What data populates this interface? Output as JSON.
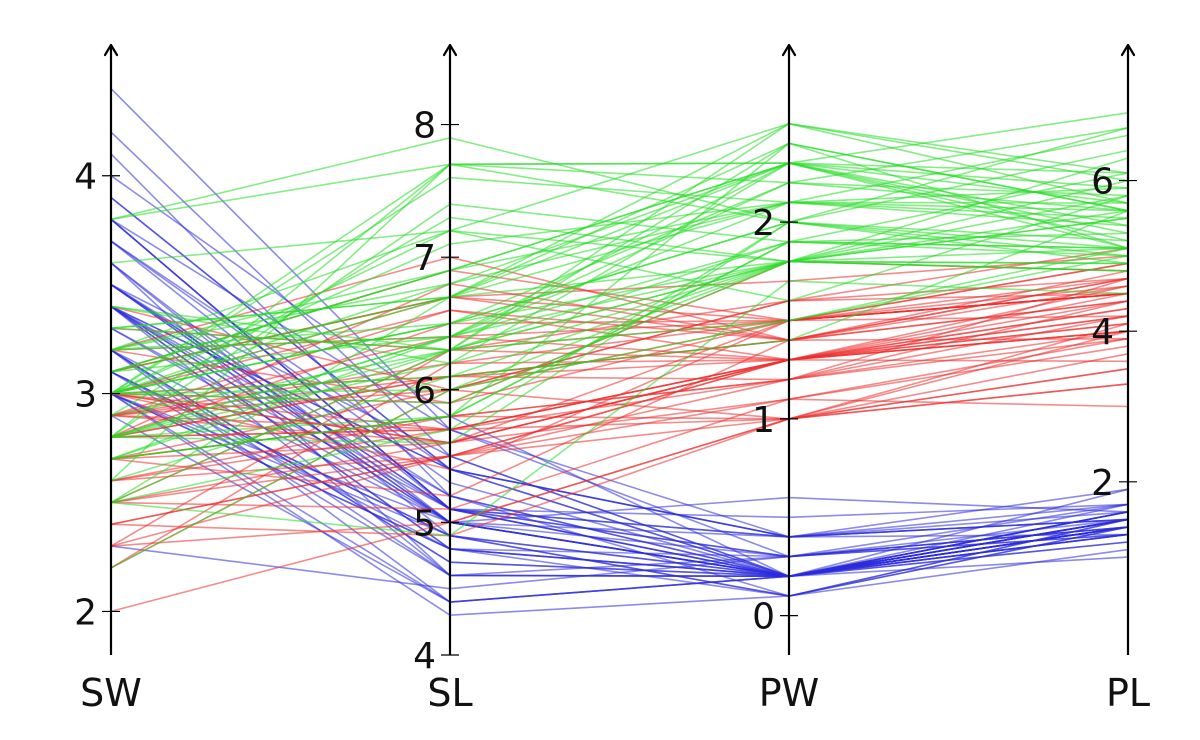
{
  "chart_data": {
    "type": "parallel-coordinates",
    "dimensions": [
      {
        "key": "SW",
        "label": "SW",
        "range": [
          1.8,
          4.6
        ],
        "ticks": [
          2,
          3,
          4
        ],
        "tick_labels": [
          "2",
          "3",
          "4"
        ]
      },
      {
        "key": "SL",
        "label": "SL",
        "range": [
          4.0,
          8.6
        ],
        "ticks": [
          4,
          5,
          6,
          7,
          8
        ],
        "tick_labels": [
          "4",
          "5",
          "6",
          "7",
          "8"
        ]
      },
      {
        "key": "PW",
        "label": "PW",
        "range": [
          -0.2,
          2.9
        ],
        "ticks": [
          0,
          1,
          2
        ],
        "tick_labels": [
          "0",
          "1",
          "2"
        ]
      },
      {
        "key": "PL",
        "label": "PL",
        "range": [
          -0.3,
          7.8
        ],
        "ticks": [
          2,
          4,
          6
        ],
        "tick_labels": [
          "2",
          "4",
          "6"
        ]
      }
    ],
    "colors": {
      "setosa": "#2b2bdd",
      "versicolor": "#ee2b2b",
      "virginica": "#22dd22"
    },
    "series": [
      {
        "color": "#2b2bdd",
        "records": [
          [
            3.5,
            5.1,
            0.2,
            1.4
          ],
          [
            3.0,
            4.9,
            0.2,
            1.4
          ],
          [
            3.2,
            4.7,
            0.2,
            1.3
          ],
          [
            3.1,
            4.6,
            0.2,
            1.5
          ],
          [
            3.6,
            5.0,
            0.2,
            1.4
          ],
          [
            3.9,
            5.4,
            0.4,
            1.7
          ],
          [
            3.4,
            4.6,
            0.3,
            1.4
          ],
          [
            3.4,
            5.0,
            0.2,
            1.5
          ],
          [
            2.9,
            4.4,
            0.2,
            1.4
          ],
          [
            3.1,
            4.9,
            0.1,
            1.5
          ],
          [
            3.7,
            5.4,
            0.2,
            1.5
          ],
          [
            3.4,
            4.8,
            0.2,
            1.6
          ],
          [
            3.0,
            4.8,
            0.1,
            1.4
          ],
          [
            3.0,
            4.3,
            0.1,
            1.1
          ],
          [
            4.0,
            5.8,
            0.2,
            1.2
          ],
          [
            4.4,
            5.7,
            0.4,
            1.5
          ],
          [
            3.9,
            5.4,
            0.4,
            1.3
          ],
          [
            3.5,
            5.1,
            0.3,
            1.4
          ],
          [
            3.8,
            5.7,
            0.3,
            1.7
          ],
          [
            3.8,
            5.1,
            0.3,
            1.5
          ],
          [
            3.4,
            5.4,
            0.2,
            1.7
          ],
          [
            3.7,
            5.1,
            0.4,
            1.5
          ],
          [
            3.6,
            4.6,
            0.2,
            1.0
          ],
          [
            3.3,
            5.1,
            0.5,
            1.7
          ],
          [
            3.4,
            4.8,
            0.2,
            1.9
          ],
          [
            3.0,
            5.0,
            0.2,
            1.6
          ],
          [
            3.4,
            5.0,
            0.4,
            1.6
          ],
          [
            3.5,
            5.2,
            0.2,
            1.5
          ],
          [
            3.4,
            5.2,
            0.2,
            1.4
          ],
          [
            3.2,
            4.7,
            0.2,
            1.6
          ],
          [
            3.1,
            4.8,
            0.2,
            1.6
          ],
          [
            3.4,
            5.4,
            0.4,
            1.5
          ],
          [
            4.1,
            5.2,
            0.1,
            1.5
          ],
          [
            4.2,
            5.5,
            0.2,
            1.4
          ],
          [
            3.1,
            4.9,
            0.2,
            1.5
          ],
          [
            3.2,
            5.0,
            0.2,
            1.2
          ],
          [
            3.5,
            5.5,
            0.2,
            1.3
          ],
          [
            3.6,
            4.9,
            0.1,
            1.4
          ],
          [
            3.0,
            4.4,
            0.2,
            1.3
          ],
          [
            3.4,
            5.1,
            0.2,
            1.5
          ],
          [
            3.5,
            5.0,
            0.3,
            1.3
          ],
          [
            2.3,
            4.5,
            0.3,
            1.3
          ],
          [
            3.2,
            4.4,
            0.2,
            1.3
          ],
          [
            3.5,
            5.0,
            0.6,
            1.6
          ],
          [
            3.8,
            5.1,
            0.4,
            1.9
          ],
          [
            3.0,
            4.8,
            0.3,
            1.4
          ],
          [
            3.8,
            5.1,
            0.2,
            1.6
          ],
          [
            3.2,
            4.6,
            0.2,
            1.4
          ],
          [
            3.7,
            5.3,
            0.2,
            1.5
          ],
          [
            3.3,
            5.0,
            0.2,
            1.4
          ]
        ]
      },
      {
        "color": "#ee2b2b",
        "records": [
          [
            3.2,
            7.0,
            1.4,
            4.7
          ],
          [
            3.2,
            6.4,
            1.5,
            4.5
          ],
          [
            3.1,
            6.9,
            1.5,
            4.9
          ],
          [
            2.3,
            5.5,
            1.3,
            4.0
          ],
          [
            2.8,
            6.5,
            1.5,
            4.6
          ],
          [
            2.8,
            5.7,
            1.3,
            4.5
          ],
          [
            3.3,
            6.3,
            1.6,
            4.7
          ],
          [
            2.4,
            4.9,
            1.0,
            3.3
          ],
          [
            2.9,
            6.6,
            1.3,
            4.6
          ],
          [
            2.7,
            5.2,
            1.4,
            3.9
          ],
          [
            2.0,
            5.0,
            1.0,
            3.5
          ],
          [
            3.0,
            5.9,
            1.5,
            4.2
          ],
          [
            2.2,
            6.0,
            1.0,
            4.0
          ],
          [
            2.9,
            6.1,
            1.4,
            4.7
          ],
          [
            2.9,
            5.6,
            1.3,
            3.6
          ],
          [
            3.1,
            6.7,
            1.4,
            4.4
          ],
          [
            3.0,
            5.6,
            1.5,
            4.5
          ],
          [
            2.7,
            5.8,
            1.0,
            4.1
          ],
          [
            2.2,
            6.2,
            1.5,
            4.5
          ],
          [
            2.5,
            5.6,
            1.1,
            3.9
          ],
          [
            3.2,
            5.9,
            1.8,
            4.8
          ],
          [
            2.8,
            6.1,
            1.3,
            4.0
          ],
          [
            2.5,
            6.3,
            1.5,
            4.9
          ],
          [
            2.8,
            6.1,
            1.2,
            4.7
          ],
          [
            2.9,
            6.4,
            1.3,
            4.3
          ],
          [
            3.0,
            6.6,
            1.4,
            4.4
          ],
          [
            2.8,
            6.8,
            1.4,
            4.8
          ],
          [
            3.0,
            6.7,
            1.7,
            5.0
          ],
          [
            2.9,
            6.0,
            1.5,
            4.5
          ],
          [
            2.6,
            5.7,
            1.0,
            3.5
          ],
          [
            2.4,
            5.5,
            1.1,
            3.8
          ],
          [
            2.4,
            5.5,
            1.0,
            3.7
          ],
          [
            2.7,
            5.8,
            1.2,
            3.9
          ],
          [
            2.7,
            6.0,
            1.6,
            5.1
          ],
          [
            3.0,
            5.4,
            1.5,
            4.5
          ],
          [
            3.4,
            6.0,
            1.6,
            4.5
          ],
          [
            3.1,
            6.7,
            1.5,
            4.7
          ],
          [
            2.3,
            6.3,
            1.3,
            4.4
          ],
          [
            3.0,
            5.6,
            1.3,
            4.1
          ],
          [
            2.5,
            5.5,
            1.3,
            4.0
          ],
          [
            2.6,
            5.5,
            1.2,
            4.4
          ],
          [
            3.0,
            6.1,
            1.4,
            4.6
          ],
          [
            2.6,
            5.8,
            1.2,
            4.0
          ],
          [
            2.3,
            5.0,
            1.0,
            3.3
          ],
          [
            2.7,
            5.6,
            1.3,
            4.2
          ],
          [
            3.0,
            5.7,
            1.2,
            4.2
          ],
          [
            2.9,
            5.7,
            1.3,
            4.2
          ],
          [
            2.9,
            6.2,
            1.3,
            4.3
          ],
          [
            2.5,
            5.1,
            1.1,
            3.0
          ],
          [
            2.8,
            5.7,
            1.3,
            4.1
          ]
        ]
      },
      {
        "color": "#22dd22",
        "records": [
          [
            3.3,
            6.3,
            2.5,
            6.0
          ],
          [
            2.7,
            5.8,
            1.9,
            5.1
          ],
          [
            3.0,
            7.1,
            2.1,
            5.9
          ],
          [
            2.9,
            6.3,
            1.8,
            5.6
          ],
          [
            3.0,
            6.5,
            2.2,
            5.8
          ],
          [
            3.0,
            7.6,
            2.1,
            6.6
          ],
          [
            2.5,
            4.9,
            1.7,
            4.5
          ],
          [
            2.9,
            7.3,
            1.8,
            6.3
          ],
          [
            2.5,
            6.7,
            1.8,
            5.8
          ],
          [
            3.6,
            7.2,
            2.5,
            6.1
          ],
          [
            3.2,
            6.5,
            2.0,
            5.1
          ],
          [
            2.7,
            6.4,
            1.9,
            5.3
          ],
          [
            3.0,
            6.8,
            2.1,
            5.5
          ],
          [
            2.5,
            5.7,
            2.0,
            5.0
          ],
          [
            2.8,
            5.8,
            2.4,
            5.1
          ],
          [
            3.2,
            6.4,
            2.3,
            5.3
          ],
          [
            3.0,
            6.5,
            1.8,
            5.5
          ],
          [
            3.8,
            7.7,
            2.2,
            6.7
          ],
          [
            2.6,
            7.7,
            2.3,
            6.9
          ],
          [
            2.2,
            6.0,
            1.5,
            5.0
          ],
          [
            3.2,
            6.9,
            2.3,
            5.7
          ],
          [
            2.8,
            5.6,
            2.0,
            4.9
          ],
          [
            2.8,
            7.7,
            2.0,
            6.7
          ],
          [
            2.7,
            6.3,
            1.8,
            4.9
          ],
          [
            3.3,
            6.7,
            2.1,
            5.7
          ],
          [
            3.2,
            7.2,
            1.8,
            6.0
          ],
          [
            2.8,
            6.2,
            1.8,
            4.8
          ],
          [
            3.0,
            6.1,
            1.8,
            4.9
          ],
          [
            2.8,
            6.4,
            2.1,
            5.6
          ],
          [
            3.0,
            7.2,
            1.6,
            5.8
          ],
          [
            2.8,
            7.4,
            1.9,
            6.1
          ],
          [
            3.8,
            7.9,
            2.0,
            6.4
          ],
          [
            2.8,
            6.4,
            2.2,
            5.6
          ],
          [
            2.8,
            6.3,
            1.5,
            5.1
          ],
          [
            2.6,
            6.1,
            1.4,
            5.6
          ],
          [
            3.0,
            7.7,
            2.3,
            6.1
          ],
          [
            3.4,
            6.3,
            2.4,
            5.6
          ],
          [
            3.1,
            6.4,
            1.8,
            5.5
          ],
          [
            3.0,
            6.0,
            1.8,
            4.8
          ],
          [
            3.1,
            6.9,
            2.1,
            5.4
          ],
          [
            3.1,
            6.7,
            2.4,
            5.6
          ],
          [
            3.1,
            6.9,
            2.3,
            5.1
          ],
          [
            2.7,
            5.8,
            1.9,
            5.1
          ],
          [
            3.2,
            6.8,
            2.3,
            5.9
          ],
          [
            3.3,
            6.7,
            2.5,
            5.7
          ],
          [
            3.0,
            6.7,
            2.3,
            5.2
          ],
          [
            2.5,
            6.3,
            1.9,
            5.0
          ],
          [
            3.0,
            6.5,
            2.0,
            5.2
          ],
          [
            3.4,
            6.2,
            2.3,
            5.4
          ],
          [
            3.0,
            5.9,
            1.8,
            5.1
          ]
        ]
      }
    ]
  }
}
